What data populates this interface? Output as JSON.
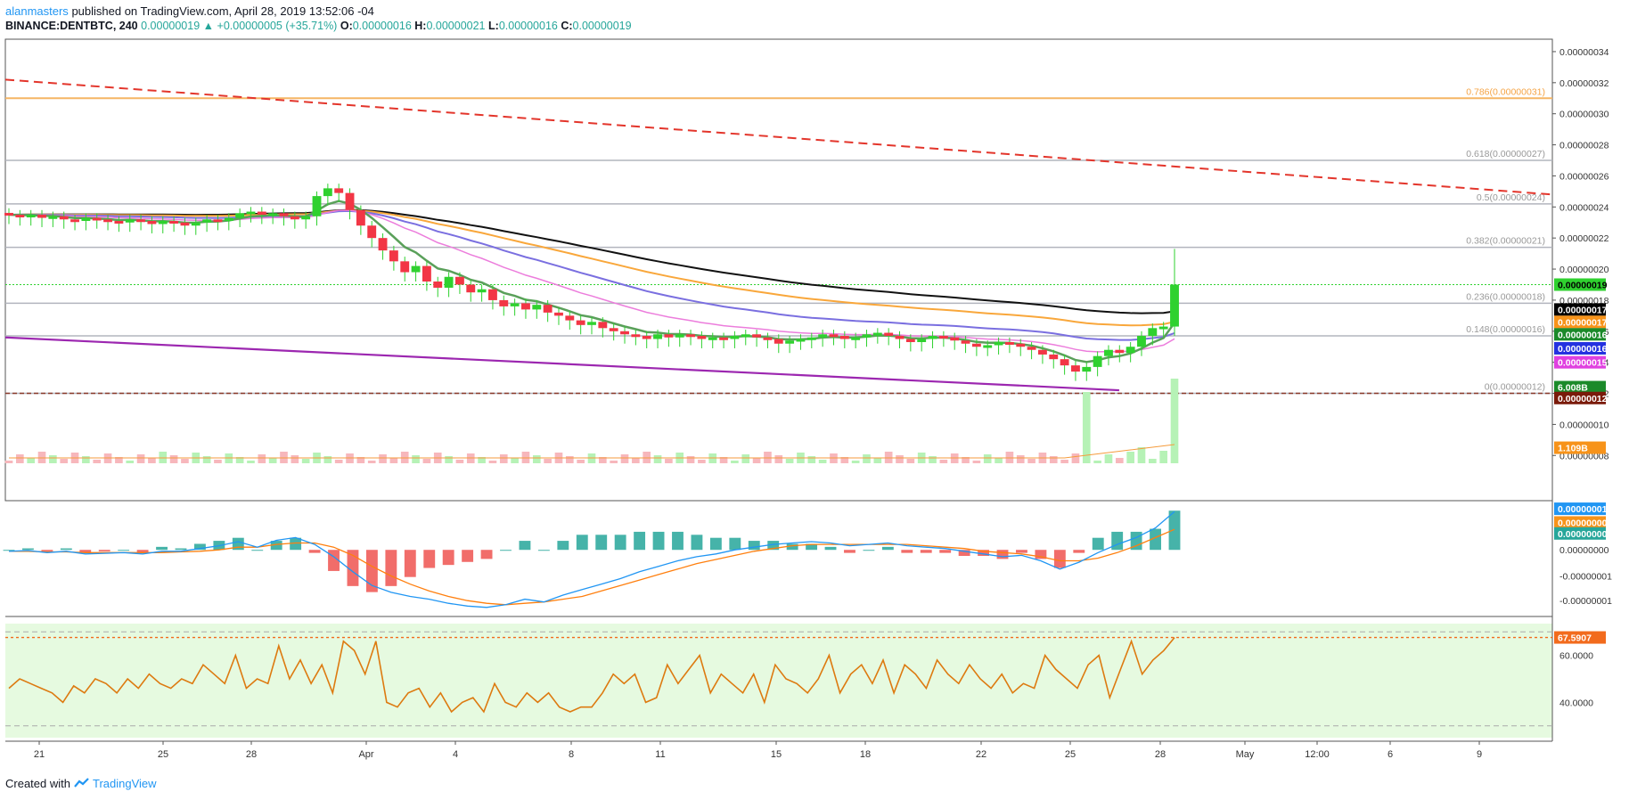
{
  "header": {
    "author": "alanmasters",
    "published": "published on TradingView.com, April 28, 2019 13:52:06 -04"
  },
  "ohlc": {
    "symbol": "BINANCE:DENTBTC, 240",
    "last": "0.00000019",
    "change_arrow": "▲",
    "change": "+0.00000005 (+35.71%)",
    "o_label": "O:",
    "o": "0.00000016",
    "h_label": "H:",
    "h": "0.00000021",
    "l_label": "L:",
    "l": "0.00000016",
    "c_label": "C:",
    "c": "0.00000019"
  },
  "footer": {
    "created_with": "Created with",
    "brand": "TradingView",
    "logo": "tradingview-logo"
  },
  "colors": {
    "up": "#2fd12f",
    "down": "#f23645",
    "ema_green": "#5aa05a",
    "ema_pink": "#ec7ddc",
    "ema_blue": "#7a6fe0",
    "ema_orange": "#f9a73b",
    "ema_black": "#111111",
    "trend_red": "#e3352b",
    "trend_purple": "#9c27b0",
    "fib_gray": "#b2b5be",
    "fib_orange": "#f5b565",
    "macd": "#2196f3",
    "signal": "#ff7f0e",
    "rsi": "#dd7a10",
    "rsi_band": "#e6fae0"
  },
  "chart_data": [
    {
      "type": "candlestick",
      "title": "BINANCE:DENTBTC, 240",
      "price_axis_ticks": [
        "0.00000034",
        "0.00000032",
        "0.00000030",
        "0.00000028",
        "0.00000026",
        "0.00000024",
        "0.00000022",
        "0.00000020",
        "0.00000018",
        "0.00000016",
        "0.00000014",
        "0.00000012",
        "0.00000010",
        "0.00000008"
      ],
      "ylim": [
        7.5e-08,
        3.48e-07
      ],
      "x_axis_ticks": [
        "21",
        "25",
        "28",
        "Apr",
        "4",
        "8",
        "11",
        "15",
        "18",
        "22",
        "25",
        "28",
        "May",
        "12:00",
        "6",
        "9"
      ],
      "price_tags": [
        {
          "label": "0.00000019",
          "bg": "#2fd12f",
          "fg": "#000000",
          "value": 1.9e-07
        },
        {
          "label": "0.00000017",
          "bg": "#000000",
          "fg": "#ffffff",
          "value": 1.74e-07
        },
        {
          "label": "0.00000017",
          "bg": "#f7931a",
          "fg": "#ffffff",
          "value": 1.66e-07
        },
        {
          "label": "0.00000016",
          "bg": "#1b8a2a",
          "fg": "#ffffff",
          "value": 1.58e-07
        },
        {
          "label": "0.00000016",
          "bg": "#2431e0",
          "fg": "#ffffff",
          "value": 1.49e-07
        },
        {
          "label": "0.00000015",
          "bg": "#e040e0",
          "fg": "#ffffff",
          "value": 1.4e-07
        },
        {
          "label": "6.008B",
          "bg": "#1b8a2a",
          "fg": "#ffffff",
          "value": 1.24e-07
        },
        {
          "label": "0.00000012",
          "bg": "#7a1a0a",
          "fg": "#ffffff",
          "value": 1.17e-07
        },
        {
          "label": "1.109B",
          "bg": "#f7931a",
          "fg": "#ffffff",
          "value": 8.5e-08
        }
      ],
      "fib_levels": [
        {
          "label": "0.786(0.00000031)",
          "value": 3.1e-07,
          "color": "#f5b565"
        },
        {
          "label": "0.618(0.00000027)",
          "value": 2.7e-07,
          "color": "#b2b5be"
        },
        {
          "label": "0.5(0.00000024)",
          "value": 2.42e-07,
          "color": "#b2b5be"
        },
        {
          "label": "0.382(0.00000021)",
          "value": 2.14e-07,
          "color": "#b2b5be"
        },
        {
          "label": "0.236(0.00000018)",
          "value": 1.78e-07,
          "color": "#b2b5be"
        },
        {
          "label": "0.148(0.00000016)",
          "value": 1.57e-07,
          "color": "#b2b5be"
        },
        {
          "label": "0(0.00000012)",
          "value": 1.2e-07,
          "color": "#b2b5be"
        }
      ],
      "support_line": {
        "value": 1.2e-07
      },
      "current_price": 1.9e-07,
      "red_trendline": {
        "from": [
          0,
          3.22e-07
        ],
        "to": [
          1,
          2.48e-07
        ]
      },
      "purple_trendline": {
        "from": [
          0,
          1.56e-07
        ],
        "to": [
          0.72,
          1.22e-07
        ]
      },
      "candles_close": [
        2.35e-07,
        2.34e-07,
        2.35e-07,
        2.33e-07,
        2.34e-07,
        2.32e-07,
        2.31e-07,
        2.33e-07,
        2.32e-07,
        2.31e-07,
        2.3e-07,
        2.32e-07,
        2.31e-07,
        2.29e-07,
        2.31e-07,
        2.3e-07,
        2.28e-07,
        2.3e-07,
        2.32e-07,
        2.31e-07,
        2.33e-07,
        2.36e-07,
        2.37e-07,
        2.35e-07,
        2.36e-07,
        2.34e-07,
        2.32e-07,
        2.34e-07,
        2.47e-07,
        2.52e-07,
        2.49e-07,
        2.38e-07,
        2.28e-07,
        2.2e-07,
        2.12e-07,
        2.05e-07,
        1.98e-07,
        2.02e-07,
        1.92e-07,
        1.88e-07,
        1.95e-07,
        1.9e-07,
        1.85e-07,
        1.87e-07,
        1.8e-07,
        1.76e-07,
        1.78e-07,
        1.74e-07,
        1.77e-07,
        1.72e-07,
        1.7e-07,
        1.67e-07,
        1.64e-07,
        1.66e-07,
        1.62e-07,
        1.6e-07,
        1.58e-07,
        1.57e-07,
        1.55e-07,
        1.58e-07,
        1.56e-07,
        1.58e-07,
        1.57e-07,
        1.55e-07,
        1.56e-07,
        1.55e-07,
        1.57e-07,
        1.58e-07,
        1.56e-07,
        1.55e-07,
        1.52e-07,
        1.54e-07,
        1.55e-07,
        1.56e-07,
        1.58e-07,
        1.57e-07,
        1.55e-07,
        1.56e-07,
        1.58e-07,
        1.59e-07,
        1.57e-07,
        1.55e-07,
        1.53e-07,
        1.55e-07,
        1.57e-07,
        1.56e-07,
        1.54e-07,
        1.52e-07,
        1.5e-07,
        1.51e-07,
        1.53e-07,
        1.52e-07,
        1.5e-07,
        1.48e-07,
        1.45e-07,
        1.42e-07,
        1.38e-07,
        1.34e-07,
        1.37e-07,
        1.44e-07,
        1.48e-07,
        1.46e-07,
        1.5e-07,
        1.57e-07,
        1.62e-07,
        1.63e-07,
        1.9e-07
      ],
      "ema_series": [
        "black",
        "orange",
        "blue",
        "pink",
        "green"
      ]
    },
    {
      "type": "bar",
      "title": "Volume",
      "description": "Volume bars with moving average, overlaid at bottom of main pane",
      "spikes": [
        {
          "x_label": "25",
          "value": "6.008B"
        },
        {
          "x_label": "28",
          "value": "6.008B"
        }
      ],
      "ma_label": "1.109B"
    },
    {
      "type": "line",
      "title": "MACD",
      "axis_ticks": [
        "0.00000000",
        "-0.00000001",
        "-0.00000001"
      ],
      "tags": [
        {
          "label": "0.00000001",
          "bg": "#2196f3"
        },
        {
          "label": "0.00000000",
          "bg": "#f7931a"
        },
        {
          "label": "0.00000000",
          "bg": "#26a69a"
        }
      ],
      "ylim": [
        -1.2e-08,
        1.2e-08
      ],
      "macd": [
        -0.1,
        -0.05,
        -0.2,
        -0.1,
        -0.3,
        -0.25,
        -0.2,
        -0.3,
        -0.1,
        -0.1,
        0.1,
        0.3,
        0.6,
        0.2,
        0.7,
        0.9,
        0.4,
        -0.5,
        -1.6,
        -2.6,
        -3.1,
        -3.4,
        -3.6,
        -3.9,
        -4.1,
        -4.2,
        -4.0,
        -3.6,
        -3.8,
        -3.3,
        -2.9,
        -2.5,
        -2.1,
        -1.6,
        -1.2,
        -0.8,
        -0.5,
        -0.3,
        0.0,
        0.2,
        0.4,
        0.5,
        0.6,
        0.5,
        0.3,
        0.4,
        0.5,
        0.3,
        0.2,
        0.1,
        -0.1,
        -0.3,
        -0.5,
        -0.4,
        -0.8,
        -1.4,
        -0.9,
        -0.2,
        0.4,
        0.9,
        1.6,
        2.8
      ],
      "signal": [
        -0.1,
        -0.1,
        -0.15,
        -0.15,
        -0.2,
        -0.2,
        -0.2,
        -0.2,
        -0.2,
        -0.15,
        -0.1,
        0.0,
        0.2,
        0.2,
        0.4,
        0.5,
        0.5,
        0.2,
        -0.4,
        -1.2,
        -1.9,
        -2.5,
        -3.0,
        -3.4,
        -3.7,
        -3.9,
        -4.0,
        -3.9,
        -3.8,
        -3.6,
        -3.4,
        -3.0,
        -2.6,
        -2.2,
        -1.8,
        -1.4,
        -1.0,
        -0.7,
        -0.4,
        -0.1,
        0.1,
        0.3,
        0.4,
        0.4,
        0.4,
        0.4,
        0.4,
        0.4,
        0.3,
        0.2,
        0.1,
        -0.1,
        -0.2,
        -0.3,
        -0.5,
        -0.8,
        -0.8,
        -0.6,
        -0.2,
        0.3,
        0.9,
        1.5
      ]
    },
    {
      "type": "line",
      "title": "RSI",
      "axis_ticks": [
        "60.0000",
        "40.0000"
      ],
      "current_label": "67.5907",
      "current": 67.5907,
      "bands": [
        70,
        30
      ],
      "ylim": [
        25,
        75
      ],
      "values": [
        46,
        50,
        48,
        46,
        44,
        40,
        47,
        44,
        50,
        48,
        44,
        50,
        46,
        52,
        48,
        46,
        50,
        48,
        56,
        52,
        48,
        60,
        46,
        50,
        48,
        64,
        50,
        58,
        48,
        56,
        44,
        66,
        62,
        52,
        66,
        40,
        38,
        44,
        46,
        38,
        44,
        36,
        40,
        42,
        36,
        48,
        40,
        38,
        44,
        40,
        44,
        38,
        36,
        38,
        38,
        44,
        52,
        48,
        52,
        40,
        42,
        56,
        48,
        54,
        60,
        44,
        52,
        48,
        44,
        52,
        40,
        56,
        50,
        48,
        44,
        50,
        60,
        44,
        52,
        56,
        48,
        58,
        44,
        56,
        52,
        46,
        58,
        52,
        48,
        56,
        50,
        46,
        52,
        44,
        48,
        46,
        60,
        54,
        50,
        46,
        56,
        60,
        42,
        54,
        66,
        52,
        58,
        62,
        67.59
      ]
    }
  ]
}
